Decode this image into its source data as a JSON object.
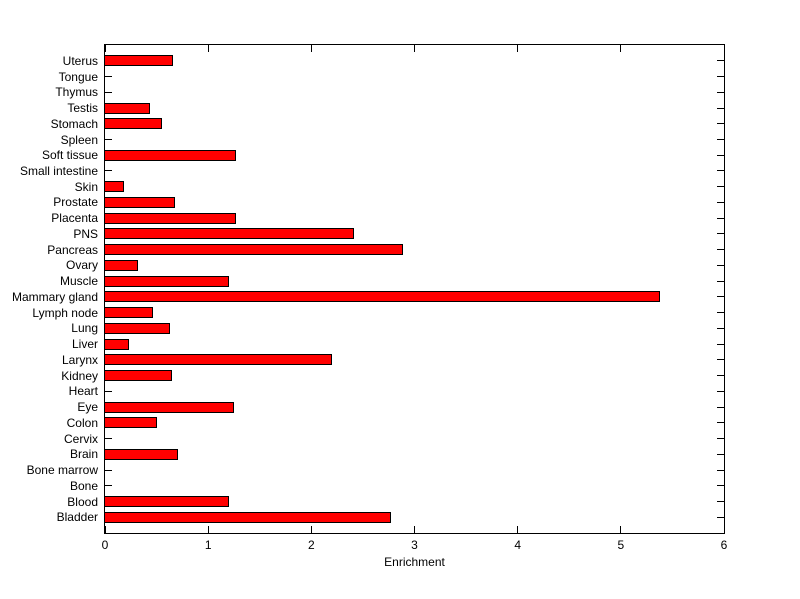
{
  "figure": {
    "background": "#ffffff"
  },
  "chart_data": {
    "type": "bar",
    "orientation": "horizontal",
    "title": "",
    "xlabel": "Enrichment",
    "ylabel": "",
    "categories": [
      "Uterus",
      "Tongue",
      "Thymus",
      "Testis",
      "Stomach",
      "Spleen",
      "Soft tissue",
      "Small intestine",
      "Skin",
      "Prostate",
      "Placenta",
      "PNS",
      "Pancreas",
      "Ovary",
      "Muscle",
      "Mammary gland",
      "Lymph node",
      "Lung",
      "Liver",
      "Larynx",
      "Kidney",
      "Heart",
      "Eye",
      "Colon",
      "Cervix",
      "Brain",
      "Bone marrow",
      "Bone",
      "Blood",
      "Bladder"
    ],
    "values": [
      0.66,
      0,
      0,
      0.44,
      0.55,
      0,
      1.27,
      0,
      0.18,
      0.68,
      1.27,
      2.41,
      2.89,
      0.32,
      1.2,
      5.38,
      0.46,
      0.63,
      0.23,
      2.2,
      0.65,
      0,
      1.25,
      0.5,
      0,
      0.71,
      0,
      0,
      1.2,
      2.77
    ],
    "xlim": [
      0,
      6
    ],
    "xticks": [
      0,
      1,
      2,
      3,
      4,
      5,
      6
    ],
    "grid": false,
    "bar_color": "#ff0000",
    "bar_edge_color": "#000000",
    "axis_color": "#000000",
    "tick_direction": "in",
    "box": true
  }
}
